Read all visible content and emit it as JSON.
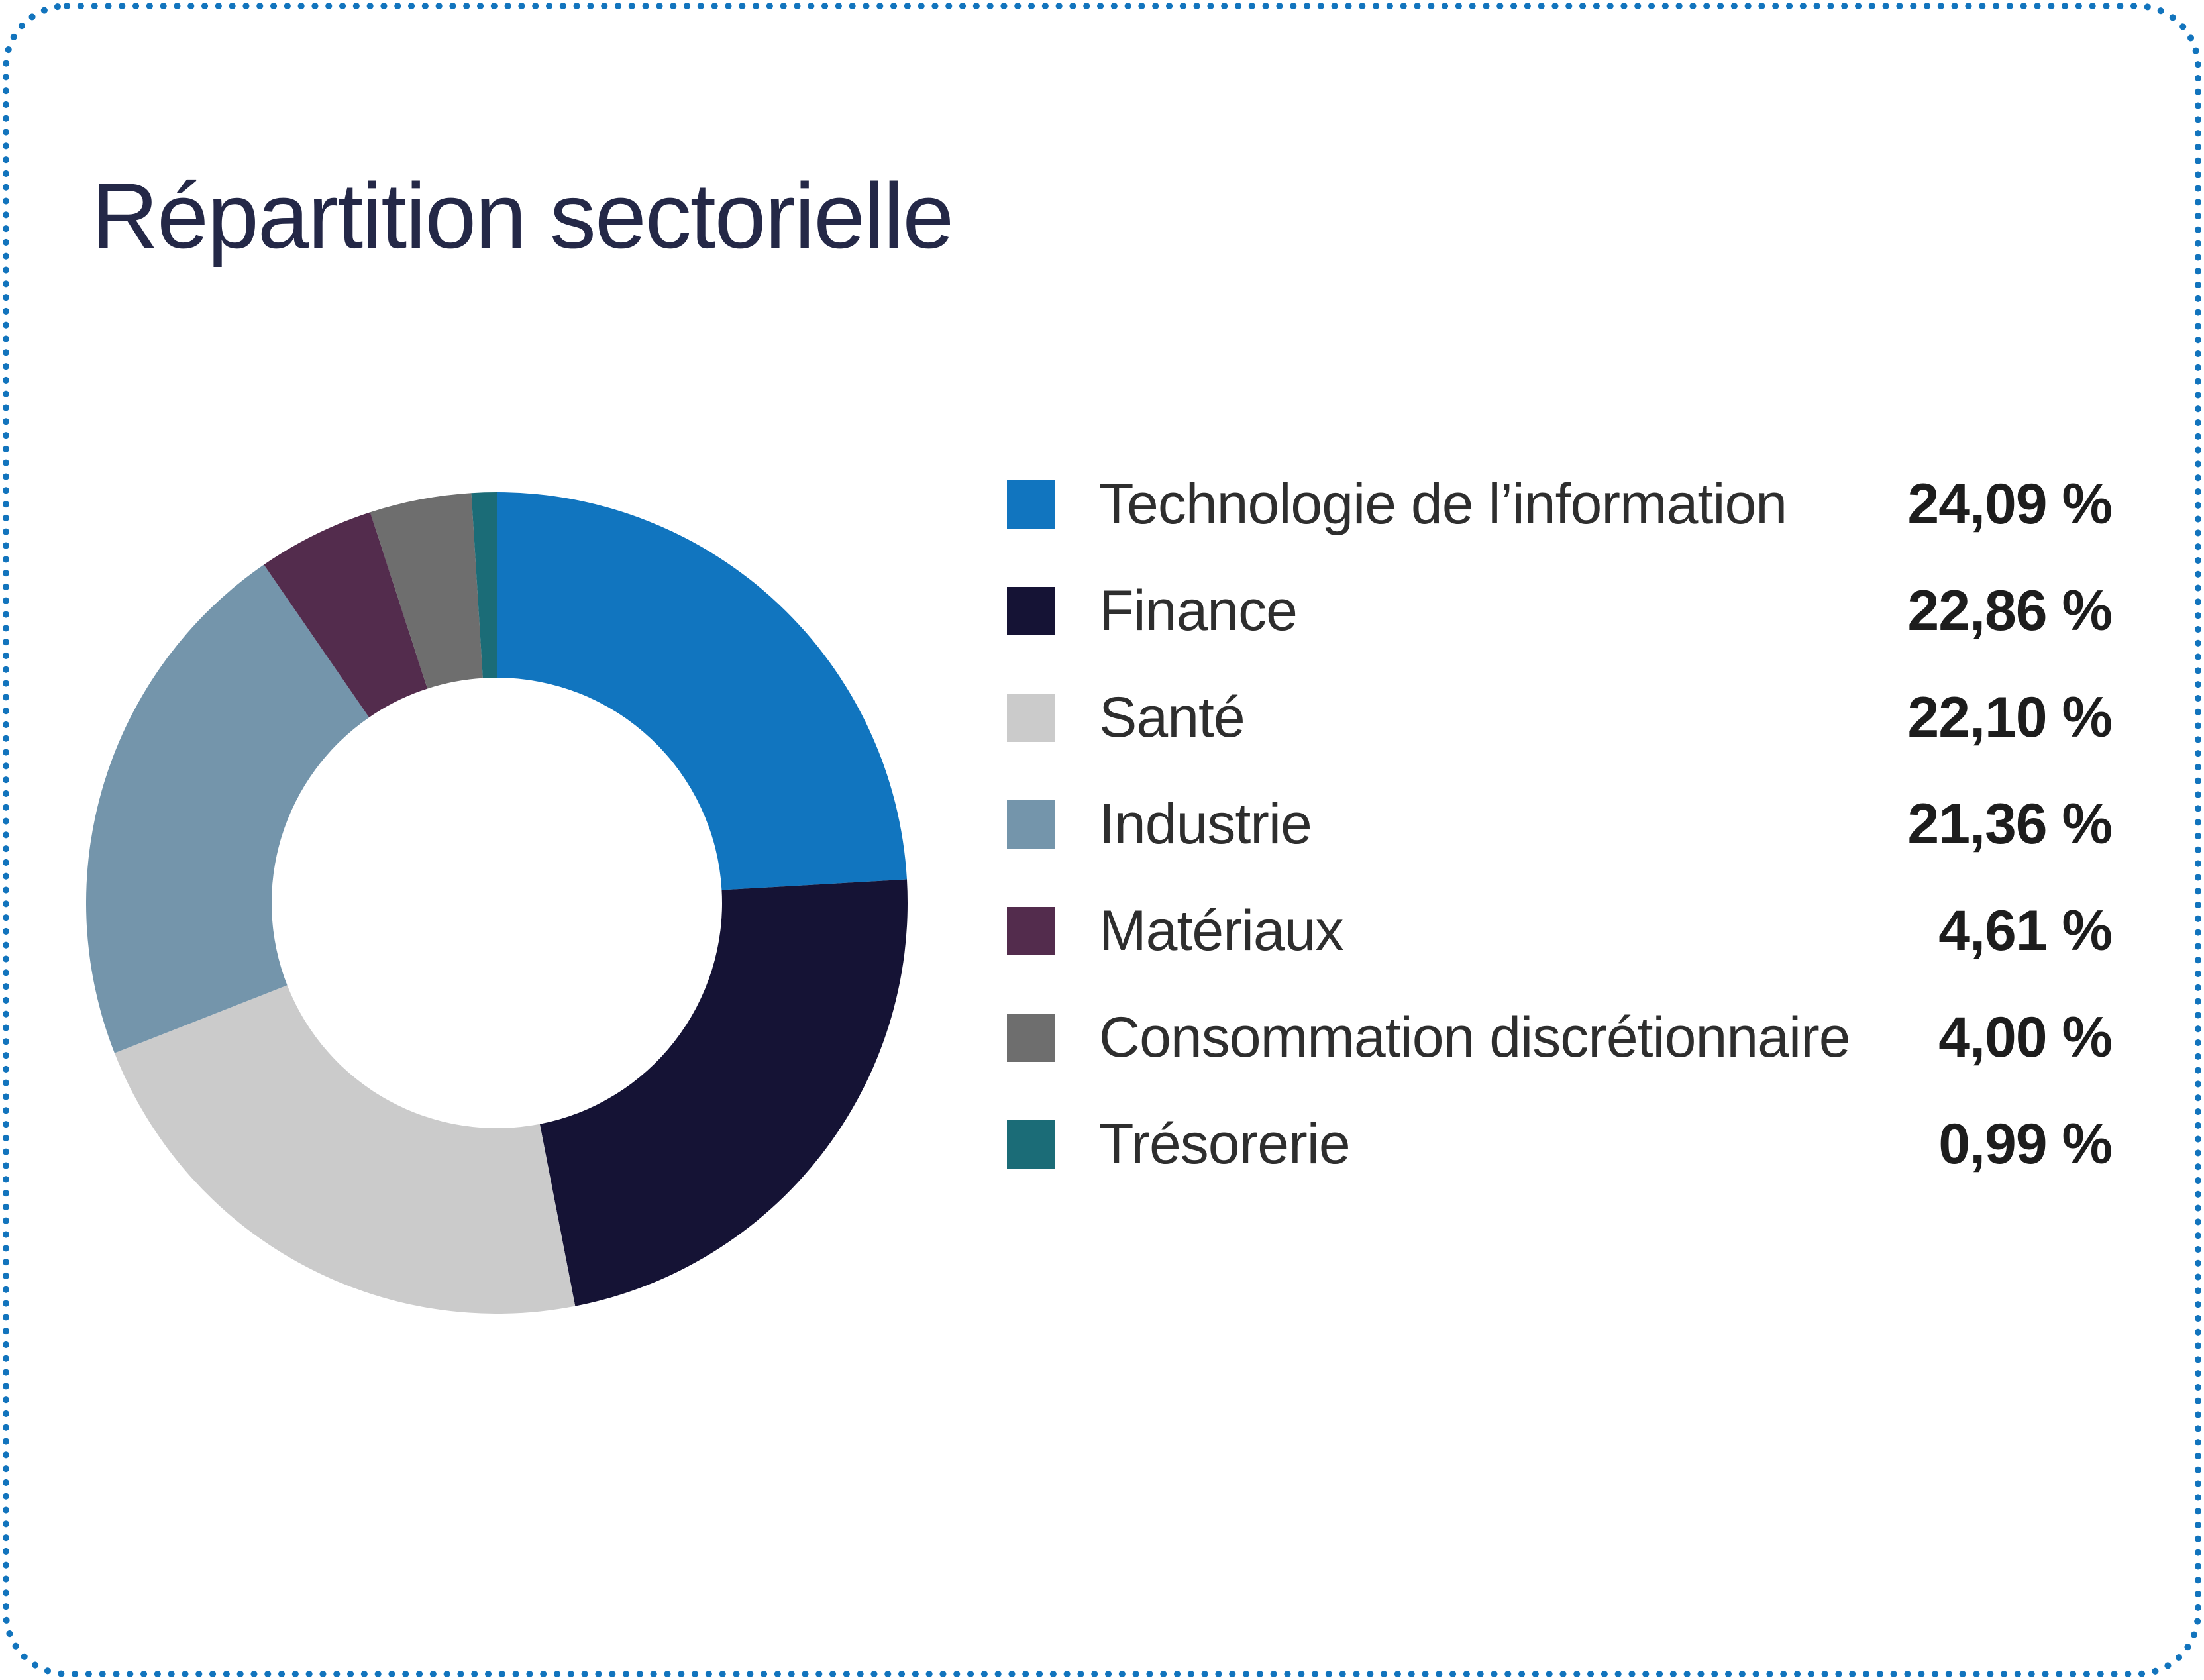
{
  "card": {
    "title": "Répartition sectorielle"
  },
  "colors": {
    "background": "#FFFFFF",
    "border_dots": "#1274BD",
    "title": "#242847",
    "legend_label": "#2E2E2E",
    "legend_value": "#1D1D1D"
  },
  "chart_data": {
    "type": "pie",
    "title": "Répartition sectorielle",
    "donut": true,
    "inner_radius_ratio": 0.548,
    "start_angle_deg": 0,
    "direction": "clockwise",
    "legend_position": "right",
    "series": [
      {
        "id": "technologie-information",
        "label": "Technologie de l’information",
        "value": 24.09,
        "display": "24,09 %",
        "color": "#1175BF"
      },
      {
        "id": "finance",
        "label": "Finance",
        "value": 22.86,
        "display": "22,86 %",
        "color": "#151335"
      },
      {
        "id": "sante",
        "label": "Santé",
        "value": 22.1,
        "display": "22,10 %",
        "color": "#CBCBCB"
      },
      {
        "id": "industrie",
        "label": "Industrie",
        "value": 21.36,
        "display": "21,36 %",
        "color": "#7495AB"
      },
      {
        "id": "materiaux",
        "label": "Matériaux",
        "value": 4.61,
        "display": "4,61 %",
        "color": "#532C4D"
      },
      {
        "id": "consommation-discretionnaire",
        "label": "Consommation discrétionnaire",
        "value": 4.0,
        "display": "4,00 %",
        "color": "#6E6E6E"
      },
      {
        "id": "tresorerie",
        "label": "Trésorerie",
        "value": 0.99,
        "display": "0,99 %",
        "color": "#1B6C77"
      }
    ]
  }
}
